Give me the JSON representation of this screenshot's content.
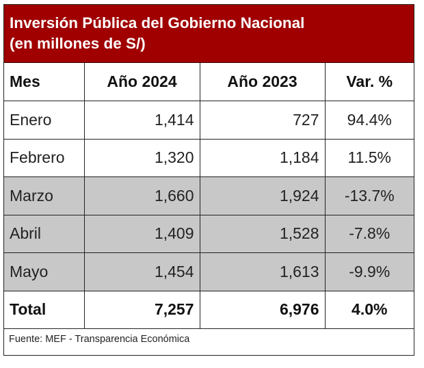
{
  "title": {
    "line1": "Inversión Pública del Gobierno Nacional",
    "line2": "(en millones de S/)"
  },
  "colors": {
    "header_background": "#a00000",
    "header_text": "#ffffff",
    "shaded_row": "#c8c8c8",
    "negative_text": "#d32f2f",
    "border": "#222222"
  },
  "table": {
    "headers": {
      "month": "Mes",
      "year_2024": "Año 2024",
      "year_2023": "Año 2023",
      "variation": "Var. %"
    },
    "rows": [
      {
        "month": "Enero",
        "year_2024": "1,414",
        "year_2023": "727",
        "variation": "94.4%",
        "shaded": false,
        "negative": false
      },
      {
        "month": "Febrero",
        "year_2024": "1,320",
        "year_2023": "1,184",
        "variation": "11.5%",
        "shaded": false,
        "negative": false
      },
      {
        "month": "Marzo",
        "year_2024": "1,660",
        "year_2023": "1,924",
        "variation": "-13.7%",
        "shaded": true,
        "negative": true
      },
      {
        "month": "Abril",
        "year_2024": "1,409",
        "year_2023": "1,528",
        "variation": "-7.8%",
        "shaded": true,
        "negative": true
      },
      {
        "month": "Mayo",
        "year_2024": "1,454",
        "year_2023": "1,613",
        "variation": "-9.9%",
        "shaded": true,
        "negative": true
      }
    ],
    "total": {
      "label": "Total",
      "year_2024": "7,257",
      "year_2023": "6,976",
      "variation": "4.0%"
    }
  },
  "source": "Fuente: MEF - Transparencia Económica"
}
